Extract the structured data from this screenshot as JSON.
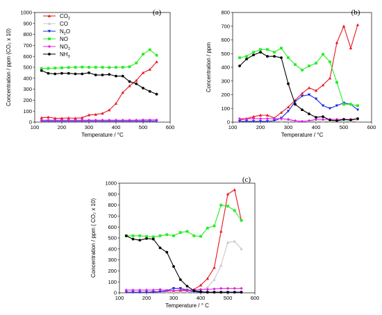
{
  "colors": {
    "CO2": "#e8141c",
    "CO": "#c8c8c8",
    "N2O": "#1428e0",
    "NO": "#22ee22",
    "NO2": "#e020e0",
    "NH3": "#000000"
  },
  "legend": {
    "placement": "top-left of panel (a)",
    "entries": [
      {
        "key": "CO2",
        "base": "CO",
        "sub": "2"
      },
      {
        "key": "CO",
        "base": "CO",
        "sub": ""
      },
      {
        "key": "N2O",
        "base": "N",
        "sub": "2",
        "tail": "O"
      },
      {
        "key": "NO",
        "base": "NO",
        "sub": ""
      },
      {
        "key": "NO2",
        "base": "NO",
        "sub": "2"
      },
      {
        "key": "NH3",
        "base": "NH",
        "sub": "3"
      }
    ]
  },
  "chart_data": [
    {
      "type": "line",
      "panel_label": "(a)",
      "xlabel": "Temperature / °C",
      "ylabel": "Concentration / ppm (CO₂ x 10)",
      "xlim": [
        100,
        600
      ],
      "ylim": [
        0,
        1000
      ],
      "xticks": [
        100,
        200,
        300,
        400,
        500,
        600
      ],
      "yticks": [
        0,
        100,
        200,
        300,
        400,
        500,
        600,
        700,
        800,
        900,
        1000
      ],
      "grid": false,
      "x": [
        125,
        150,
        175,
        200,
        225,
        250,
        275,
        300,
        325,
        350,
        375,
        400,
        425,
        450,
        475,
        500,
        525,
        550
      ],
      "series": [
        {
          "key": "CO2",
          "values": [
            40,
            45,
            35,
            35,
            38,
            35,
            40,
            65,
            70,
            80,
            110,
            170,
            270,
            330,
            380,
            450,
            480,
            550
          ]
        },
        {
          "key": "CO",
          "values": [
            12,
            12,
            12,
            12,
            12,
            12,
            12,
            12,
            12,
            12,
            12,
            12,
            12,
            12,
            12,
            12,
            12,
            12
          ]
        },
        {
          "key": "N2O",
          "values": [
            8,
            8,
            8,
            8,
            8,
            8,
            8,
            8,
            8,
            8,
            8,
            8,
            8,
            8,
            8,
            8,
            8,
            8
          ]
        },
        {
          "key": "NO",
          "values": [
            490,
            490,
            493,
            495,
            498,
            500,
            502,
            500,
            500,
            500,
            498,
            500,
            500,
            505,
            540,
            620,
            660,
            610
          ]
        },
        {
          "key": "NO2",
          "values": [
            18,
            18,
            18,
            18,
            18,
            18,
            18,
            18,
            18,
            18,
            18,
            18,
            18,
            18,
            18,
            20,
            20,
            20
          ]
        },
        {
          "key": "NH3",
          "values": [
            470,
            445,
            440,
            445,
            445,
            440,
            440,
            450,
            430,
            430,
            435,
            420,
            420,
            370,
            350,
            310,
            280,
            255
          ]
        }
      ]
    },
    {
      "type": "line",
      "panel_label": "(b)",
      "xlabel": "Temperature / °C",
      "ylabel": "Concentration / ppm",
      "xlim": [
        100,
        600
      ],
      "ylim": [
        0,
        800
      ],
      "xticks": [
        100,
        200,
        300,
        400,
        500,
        600
      ],
      "yticks": [
        0,
        100,
        200,
        300,
        400,
        500,
        600,
        700,
        800
      ],
      "grid": false,
      "x": [
        125,
        150,
        175,
        200,
        225,
        250,
        275,
        300,
        325,
        350,
        375,
        400,
        425,
        450,
        475,
        500,
        525,
        550
      ],
      "series": [
        {
          "key": "CO2",
          "values": [
            15,
            25,
            40,
            50,
            50,
            30,
            70,
            110,
            160,
            210,
            250,
            230,
            270,
            320,
            580,
            700,
            540,
            710
          ]
        },
        {
          "key": "CO",
          "values": [
            8,
            8,
            8,
            8,
            8,
            8,
            8,
            8,
            8,
            8,
            8,
            8,
            8,
            8,
            8,
            8,
            8,
            8
          ]
        },
        {
          "key": "N2O",
          "values": [
            5,
            5,
            5,
            5,
            5,
            10,
            30,
            80,
            150,
            190,
            200,
            170,
            120,
            100,
            120,
            140,
            130,
            90
          ]
        },
        {
          "key": "NO",
          "values": [
            470,
            480,
            510,
            530,
            530,
            510,
            540,
            470,
            420,
            380,
            410,
            430,
            495,
            440,
            290,
            130,
            130,
            120
          ]
        },
        {
          "key": "NO2",
          "values": [
            25,
            25,
            25,
            25,
            25,
            25,
            25,
            20,
            10,
            5,
            10,
            20,
            20,
            20,
            20,
            20,
            20,
            25
          ]
        },
        {
          "key": "NH3",
          "values": [
            410,
            460,
            490,
            510,
            480,
            480,
            470,
            280,
            130,
            90,
            60,
            35,
            40,
            15,
            10,
            20,
            15,
            25
          ]
        }
      ]
    },
    {
      "type": "line",
      "panel_label": "(c)",
      "xlabel": "Temperature / ° C",
      "ylabel": "Concentration / ppm ( CO₂ x 10)",
      "xlim": [
        100,
        600
      ],
      "ylim": [
        0,
        1000
      ],
      "xticks": [
        100,
        200,
        300,
        400,
        500,
        600
      ],
      "yticks": [
        0,
        100,
        200,
        300,
        400,
        500,
        600,
        700,
        800,
        900,
        1000
      ],
      "grid": false,
      "x": [
        125,
        150,
        175,
        200,
        225,
        250,
        275,
        300,
        325,
        350,
        375,
        400,
        425,
        450,
        475,
        500,
        525,
        550
      ],
      "series": [
        {
          "key": "CO2",
          "values": [
            5,
            5,
            5,
            5,
            10,
            10,
            15,
            20,
            20,
            20,
            30,
            70,
            130,
            230,
            560,
            900,
            940,
            660
          ]
        },
        {
          "key": "CO",
          "values": [
            5,
            5,
            5,
            5,
            5,
            5,
            5,
            5,
            5,
            5,
            10,
            20,
            50,
            120,
            250,
            460,
            470,
            400
          ]
        },
        {
          "key": "N2O",
          "values": [
            5,
            5,
            5,
            5,
            5,
            10,
            20,
            40,
            40,
            25,
            10,
            5,
            5,
            5,
            5,
            5,
            5,
            5
          ]
        },
        {
          "key": "NO",
          "values": [
            520,
            520,
            520,
            515,
            510,
            520,
            530,
            520,
            550,
            560,
            520,
            515,
            590,
            610,
            800,
            790,
            750,
            660
          ]
        },
        {
          "key": "NO2",
          "values": [
            25,
            25,
            25,
            25,
            25,
            30,
            20,
            20,
            25,
            25,
            25,
            30,
            30,
            35,
            40,
            40,
            40,
            40
          ]
        },
        {
          "key": "NH3",
          "values": [
            520,
            490,
            480,
            495,
            490,
            410,
            370,
            240,
            120,
            60,
            20,
            10,
            5,
            5,
            5,
            5,
            5,
            5
          ]
        }
      ]
    }
  ]
}
